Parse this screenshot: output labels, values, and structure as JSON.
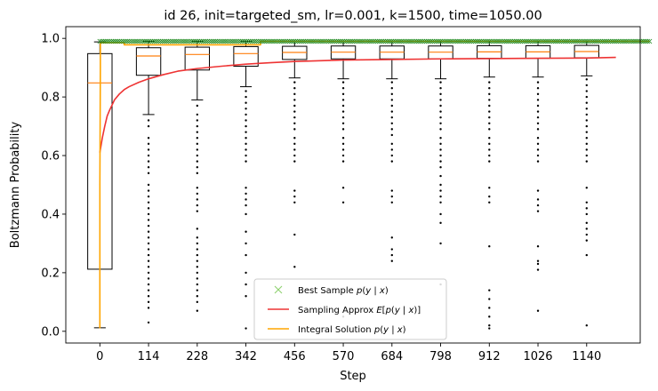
{
  "chart_data": {
    "type": "box",
    "title": "id 26, init=targeted_sm, lr=0.001, k=1500, time=1050.00",
    "xlabel": "Step",
    "ylabel": "Boltzmann Probability",
    "ylim": [
      -0.04,
      1.04
    ],
    "yticks": [
      0.0,
      0.2,
      0.4,
      0.6,
      0.8,
      1.0
    ],
    "xlim": [
      -0.7,
      11.1
    ],
    "categories": [
      "0",
      "114",
      "228",
      "342",
      "456",
      "570",
      "684",
      "798",
      "912",
      "1026",
      "1140"
    ],
    "boxes": [
      {
        "step": 0,
        "whisker_low": 0.012,
        "q1": 0.212,
        "median": 0.848,
        "q3": 0.948,
        "whisker_high": 0.988,
        "outliers": []
      },
      {
        "step": 114,
        "whisker_low": 0.74,
        "q1": 0.874,
        "median": 0.94,
        "q3": 0.968,
        "whisker_high": 0.99,
        "outliers": [
          0.72,
          0.7,
          0.66,
          0.64,
          0.62,
          0.6,
          0.58,
          0.56,
          0.54,
          0.5,
          0.48,
          0.46,
          0.44,
          0.42,
          0.4,
          0.38,
          0.36,
          0.34,
          0.32,
          0.3,
          0.28,
          0.26,
          0.24,
          0.22,
          0.2,
          0.18,
          0.16,
          0.14,
          0.12,
          0.1,
          0.08,
          0.03
        ]
      },
      {
        "step": 228,
        "whisker_low": 0.79,
        "q1": 0.892,
        "median": 0.945,
        "q3": 0.97,
        "whisker_high": 0.99,
        "outliers": [
          0.77,
          0.74,
          0.72,
          0.7,
          0.68,
          0.66,
          0.64,
          0.62,
          0.6,
          0.58,
          0.56,
          0.54,
          0.49,
          0.47,
          0.45,
          0.43,
          0.41,
          0.35,
          0.32,
          0.3,
          0.28,
          0.26,
          0.24,
          0.22,
          0.2,
          0.18,
          0.16,
          0.14,
          0.12,
          0.1,
          0.07
        ]
      },
      {
        "step": 342,
        "whisker_low": 0.835,
        "q1": 0.905,
        "median": 0.948,
        "q3": 0.972,
        "whisker_high": 0.99,
        "outliers": [
          0.82,
          0.8,
          0.78,
          0.76,
          0.74,
          0.72,
          0.7,
          0.68,
          0.66,
          0.64,
          0.62,
          0.6,
          0.58,
          0.49,
          0.47,
          0.45,
          0.43,
          0.4,
          0.34,
          0.3,
          0.26,
          0.2,
          0.16,
          0.12,
          0.01
        ]
      },
      {
        "step": 456,
        "whisker_low": 0.865,
        "q1": 0.928,
        "median": 0.952,
        "q3": 0.973,
        "whisker_high": 0.99,
        "outliers": [
          0.85,
          0.83,
          0.81,
          0.79,
          0.77,
          0.75,
          0.73,
          0.71,
          0.69,
          0.66,
          0.64,
          0.62,
          0.6,
          0.58,
          0.48,
          0.46,
          0.44,
          0.33,
          0.22
        ]
      },
      {
        "step": 570,
        "whisker_low": 0.862,
        "q1": 0.93,
        "median": 0.953,
        "q3": 0.974,
        "whisker_high": 0.99,
        "outliers": [
          0.85,
          0.83,
          0.81,
          0.79,
          0.77,
          0.75,
          0.73,
          0.71,
          0.69,
          0.66,
          0.64,
          0.62,
          0.6,
          0.58,
          0.49,
          0.44,
          0.05
        ]
      },
      {
        "step": 684,
        "whisker_low": 0.862,
        "q1": 0.93,
        "median": 0.953,
        "q3": 0.974,
        "whisker_high": 0.99,
        "outliers": [
          0.85,
          0.83,
          0.81,
          0.79,
          0.77,
          0.75,
          0.73,
          0.71,
          0.69,
          0.67,
          0.64,
          0.62,
          0.6,
          0.58,
          0.48,
          0.46,
          0.44,
          0.32,
          0.28,
          0.26,
          0.24
        ]
      },
      {
        "step": 798,
        "whisker_low": 0.862,
        "q1": 0.93,
        "median": 0.953,
        "q3": 0.974,
        "whisker_high": 0.99,
        "outliers": [
          0.85,
          0.83,
          0.81,
          0.79,
          0.77,
          0.75,
          0.73,
          0.71,
          0.69,
          0.66,
          0.64,
          0.62,
          0.6,
          0.58,
          0.56,
          0.53,
          0.5,
          0.48,
          0.46,
          0.44,
          0.4,
          0.37,
          0.3,
          0.16
        ]
      },
      {
        "step": 912,
        "whisker_low": 0.868,
        "q1": 0.932,
        "median": 0.954,
        "q3": 0.975,
        "whisker_high": 0.99,
        "outliers": [
          0.85,
          0.83,
          0.81,
          0.79,
          0.77,
          0.75,
          0.73,
          0.71,
          0.69,
          0.66,
          0.64,
          0.62,
          0.6,
          0.58,
          0.49,
          0.46,
          0.44,
          0.29,
          0.14,
          0.11,
          0.08,
          0.05,
          0.02,
          0.01
        ]
      },
      {
        "step": 1026,
        "whisker_low": 0.868,
        "q1": 0.932,
        "median": 0.954,
        "q3": 0.975,
        "whisker_high": 0.99,
        "outliers": [
          0.85,
          0.83,
          0.81,
          0.79,
          0.77,
          0.75,
          0.73,
          0.71,
          0.69,
          0.66,
          0.64,
          0.62,
          0.6,
          0.58,
          0.48,
          0.45,
          0.43,
          0.41,
          0.29,
          0.24,
          0.23,
          0.21,
          0.07
        ]
      },
      {
        "step": 1140,
        "whisker_low": 0.872,
        "q1": 0.934,
        "median": 0.955,
        "q3": 0.976,
        "whisker_high": 0.99,
        "outliers": [
          0.86,
          0.84,
          0.82,
          0.8,
          0.78,
          0.76,
          0.74,
          0.72,
          0.7,
          0.68,
          0.66,
          0.64,
          0.62,
          0.6,
          0.58,
          0.49,
          0.44,
          0.42,
          0.4,
          0.37,
          0.35,
          0.33,
          0.31,
          0.26,
          0.02
        ]
      }
    ],
    "series": [
      {
        "name": "Best Sample $p(y \\mid x)$",
        "type": "scatter",
        "marker": "x",
        "color": "#8ed16f",
        "x_range": [
          0,
          11.3
        ],
        "y": 0.99
      },
      {
        "name": "Sampling Approx $E[p(y \\mid x)]$",
        "type": "line",
        "color": "#ee3333",
        "x": [
          0.0,
          0.02,
          0.05,
          0.1,
          0.15,
          0.2,
          0.3,
          0.4,
          0.5,
          0.6,
          0.8,
          1.0,
          1.3,
          1.6,
          2.0,
          2.5,
          3.0,
          3.5,
          4.0,
          5.0,
          6.0,
          7.0,
          8.0,
          9.0,
          10.0,
          10.6
        ],
        "y": [
          0.61,
          0.63,
          0.66,
          0.7,
          0.735,
          0.755,
          0.79,
          0.81,
          0.825,
          0.835,
          0.85,
          0.862,
          0.876,
          0.888,
          0.897,
          0.905,
          0.912,
          0.917,
          0.921,
          0.926,
          0.928,
          0.93,
          0.931,
          0.932,
          0.933,
          0.935
        ]
      },
      {
        "name": "Integral Solution $p(y \\mid x)$",
        "type": "line",
        "color": "#ffa500",
        "x": [
          0.0,
          0.0,
          0.0,
          0.01,
          0.01,
          0.5,
          0.5,
          3.3,
          3.3,
          11.3
        ],
        "y": [
          0.01,
          0.05,
          0.5,
          0.9,
          0.985,
          0.985,
          0.978,
          0.978,
          0.99,
          0.99
        ]
      }
    ],
    "legend": {
      "placement": "lower-center",
      "entries": [
        "Best Sample $p(y \\mid x)$",
        "Sampling Approx $E[p(y \\mid x)]$",
        "Integral Solution $p(y \\mid x)$"
      ]
    }
  }
}
